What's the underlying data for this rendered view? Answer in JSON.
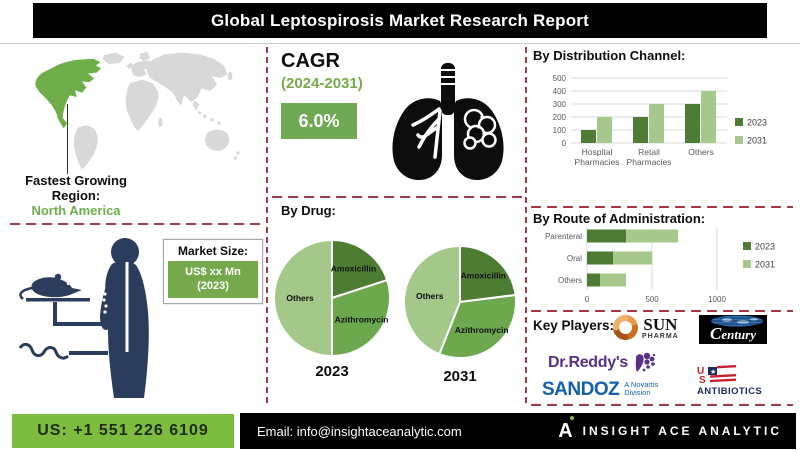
{
  "title": "Global Leptospirosis Market Research Report",
  "map_section": {
    "line1": "Fastest Growing",
    "line2": "Region:",
    "region": "North America"
  },
  "cagr": {
    "label": "CAGR",
    "period": "(2024-2031)",
    "value": "6.0%"
  },
  "market_size": {
    "label": "Market Size:",
    "value": "US$ xx Mn",
    "year": "(2023)"
  },
  "chart_data": [
    {
      "id": "by-distribution-channel",
      "type": "bar",
      "title": "By Distribution Channel:",
      "categories": [
        "Hospital Pharmacies",
        "Retail Pharmacies",
        "Others"
      ],
      "series": [
        {
          "name": "2023",
          "values": [
            100,
            200,
            300
          ],
          "color": "#4e7c34"
        },
        {
          "name": "2031",
          "values": [
            200,
            300,
            400
          ],
          "color": "#a6c88c"
        }
      ],
      "ylim": [
        0,
        500
      ],
      "yticks": [
        0,
        100,
        200,
        300,
        400,
        500
      ],
      "grid": true,
      "legend_position": "right"
    },
    {
      "id": "by-drug",
      "type": "pie",
      "title": "By Drug:",
      "labels": [
        "Amoxicillin",
        "Azithromycin",
        "Others"
      ],
      "slice_colors": [
        "#4d7c33",
        "#6da84e",
        "#a4c78a"
      ],
      "pies": [
        {
          "year": "2023",
          "values": [
            20,
            30,
            50
          ]
        },
        {
          "year": "2031",
          "values": [
            23,
            33,
            44
          ]
        }
      ]
    },
    {
      "id": "by-route-of-administration",
      "type": "bar-horizontal-stacked",
      "title": "By Route of Administration:",
      "categories": [
        "Parenteral",
        "Oral",
        "Others"
      ],
      "series": [
        {
          "name": "2023",
          "values": [
            300,
            200,
            100
          ],
          "color": "#4e7c34"
        },
        {
          "name": "2031",
          "values": [
            400,
            300,
            200
          ],
          "color": "#a6c88c"
        }
      ],
      "xlim": [
        0,
        1400
      ],
      "xticks": [
        0,
        500,
        1000
      ],
      "grid": true,
      "legend_position": "right"
    }
  ],
  "key_players": {
    "label": "Key Players:",
    "players": [
      {
        "name": "Sun Pharma",
        "line1": "SUN",
        "line2": "PHARMA"
      },
      {
        "name": "Century",
        "text": "Century"
      },
      {
        "name": "Dr. Reddy's",
        "text": "Dr.Reddy's"
      },
      {
        "name": "Sandoz",
        "text": "SANDOZ",
        "sub1": "A Novartis",
        "sub2": "Division"
      },
      {
        "name": "US Antibiotics",
        "line1": "US",
        "line2": "ANTIBIOTICS"
      }
    ]
  },
  "footer": {
    "phone": "US: +1 551 226 6109",
    "email": "Email: info@insightaceanalytic.com",
    "brand": "INSIGHT ACE ANALYTIC"
  },
  "colors": {
    "accent_green": "#76a94c",
    "bright_green": "#7ebc3f",
    "dark_green": "#4e7c34",
    "light_green": "#a6c88c",
    "map_green": "#6fae4a",
    "map_gray": "#d8d8d8",
    "dash_red": "#9e3b44",
    "figure_navy": "#2c3c5c",
    "title_bg": "#000000"
  }
}
